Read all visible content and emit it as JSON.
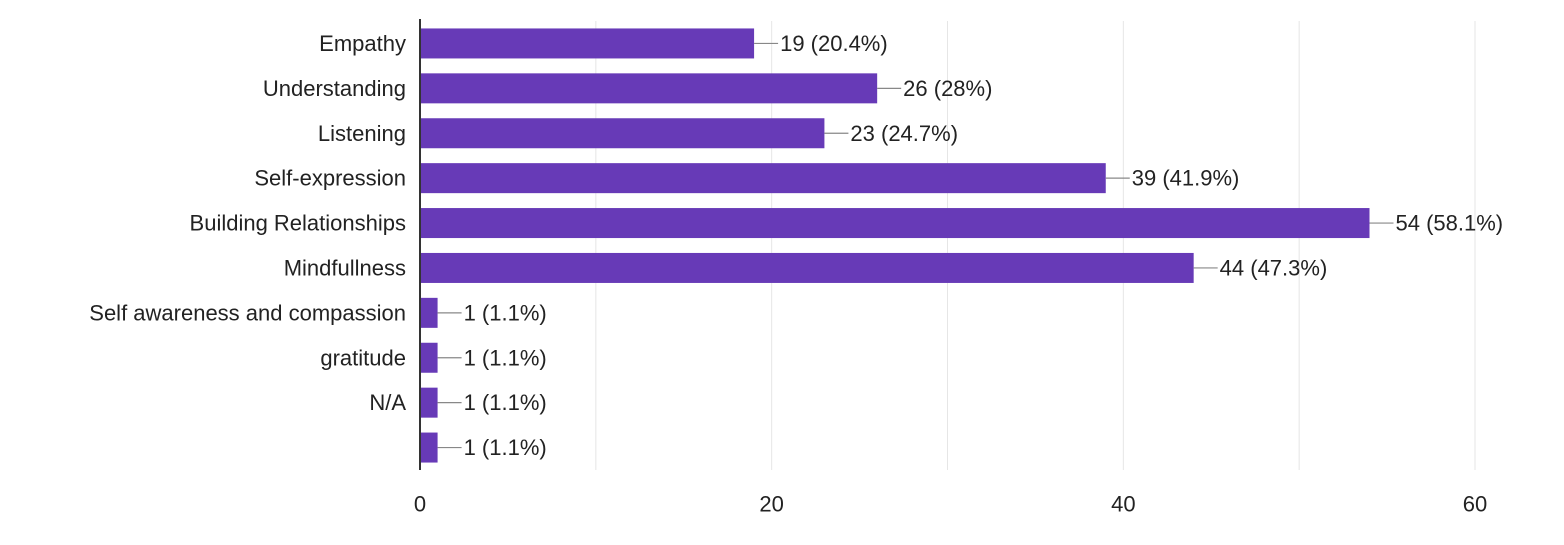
{
  "chart_data": {
    "type": "bar",
    "orientation": "horizontal",
    "categories": [
      "Empathy",
      "Understanding",
      "Listening",
      "Self-expression",
      "Building Relationships",
      "Mindfullness",
      "Self awareness and compassion",
      "gratitude",
      "N/A",
      ""
    ],
    "values": [
      19,
      26,
      23,
      39,
      54,
      44,
      1,
      1,
      1,
      1
    ],
    "data_labels": [
      "19 (20.4%)",
      "26 (28%)",
      "23 (24.7%)",
      "39 (41.9%)",
      "54 (58.1%)",
      "44 (47.3%)",
      "1 (1.1%)",
      "1 (1.1%)",
      "1 (1.1%)",
      "1 (1.1%)"
    ],
    "xlim": [
      0,
      60
    ],
    "x_ticks": [
      0,
      20,
      40,
      60
    ],
    "grid": true,
    "bar_color": "#673ab7",
    "axis_color": "#333333",
    "grid_color": "#e6e6e6",
    "label_color": "#222222"
  }
}
